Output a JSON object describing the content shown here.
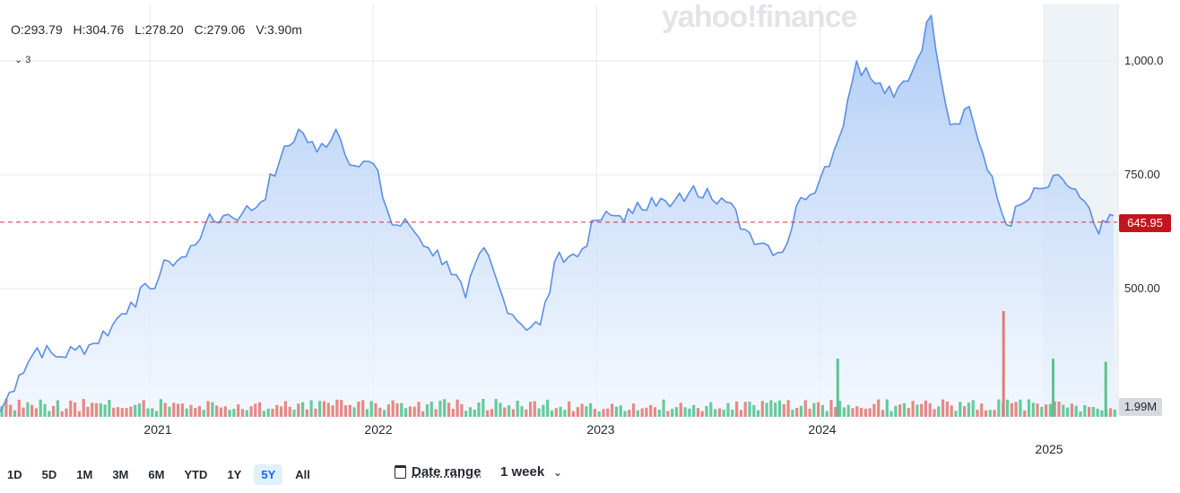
{
  "watermark": "yahoo!finance",
  "ohlc": {
    "open": "O:293.79",
    "high": "H:304.76",
    "low": "L:278.20",
    "close": "C:279.06",
    "volume": "V:3.90m"
  },
  "indicator_toggle": "3",
  "current_price": "645.95",
  "volume_badge": "1.99M",
  "range_buttons": [
    "1D",
    "5D",
    "1M",
    "3M",
    "6M",
    "YTD",
    "1Y",
    "5Y",
    "All"
  ],
  "active_range": "5Y",
  "date_range_label": "Date range",
  "interval_label": "1 week",
  "colors": {
    "line": "#5b8ee6",
    "fill_top": "#a9c8f5",
    "volume_up": "#58c490",
    "volume_down": "#e47c74",
    "price_badge": "#c4151c",
    "ref_line": "#d0303a"
  },
  "chart_data": {
    "type": "area",
    "y_ticks": [
      "1,000.0",
      "750.00",
      "500.00"
    ],
    "y_tick_values": [
      1000,
      750,
      500
    ],
    "ylim": [
      190,
      1125
    ],
    "x_ticks": [
      "2021",
      "2022",
      "2023",
      "2024",
      "2025"
    ],
    "x_tick_values": [
      "2021-01-01",
      "2022-01-01",
      "2023-01-01",
      "2024-01-01",
      "2025-01-01"
    ],
    "xlim": [
      "2020-05-01",
      "2025-05-01"
    ],
    "reference_value": 645.95,
    "grid": true,
    "series": [
      {
        "x": [
          "2020-05-01",
          "2020-06-01",
          "2020-07-01",
          "2020-08-01",
          "2020-09-01",
          "2020-10-01",
          "2020-11-01",
          "2020-12-01",
          "2021-01-01",
          "2021-02-01",
          "2021-03-01",
          "2021-04-01",
          "2021-05-01",
          "2021-06-01",
          "2021-07-01",
          "2021-08-01",
          "2021-09-01",
          "2021-10-01",
          "2021-11-01",
          "2021-12-01",
          "2022-01-01",
          "2022-02-01",
          "2022-03-01",
          "2022-04-01",
          "2022-05-01",
          "2022-06-01",
          "2022-07-01",
          "2022-08-01",
          "2022-09-01",
          "2022-10-01",
          "2022-11-01",
          "2022-12-01",
          "2023-01-01",
          "2023-02-01",
          "2023-03-01",
          "2023-04-01",
          "2023-05-01",
          "2023-06-01",
          "2023-07-01",
          "2023-08-01",
          "2023-09-01",
          "2023-10-01",
          "2023-11-01",
          "2023-12-01",
          "2024-01-01",
          "2024-02-01",
          "2024-03-01",
          "2024-04-01",
          "2024-05-01",
          "2024-06-01",
          "2024-07-01",
          "2024-08-01",
          "2024-09-01",
          "2024-10-01",
          "2024-11-01",
          "2024-12-01",
          "2025-01-01",
          "2025-02-01",
          "2025-03-01",
          "2025-04-01",
          "2025-04-25"
        ],
        "values": [
          230,
          310,
          370,
          350,
          365,
          380,
          420,
          470,
          500,
          560,
          570,
          640,
          660,
          665,
          690,
          780,
          850,
          800,
          850,
          770,
          775,
          640,
          640,
          590,
          560,
          480,
          590,
          480,
          420,
          420,
          580,
          570,
          650,
          660,
          665,
          700,
          680,
          710,
          720,
          690,
          630,
          600,
          580,
          700,
          740,
          830,
          1000,
          950,
          920,
          980,
          1100,
          860,
          900,
          760,
          640,
          690,
          720,
          740,
          700,
          620,
          660
        ]
      }
    ],
    "volume": {
      "label": "1.99M",
      "note": "weekly volume bars; green=up, red=down; notable spikes",
      "spikes": [
        {
          "date": "2024-01-28",
          "value": 0.55,
          "dir": "up"
        },
        {
          "date": "2024-10-25",
          "value": 1.0,
          "dir": "down"
        },
        {
          "date": "2025-01-14",
          "value": 0.55,
          "dir": "up"
        },
        {
          "date": "2025-04-10",
          "value": 0.52,
          "dir": "up"
        }
      ]
    }
  }
}
